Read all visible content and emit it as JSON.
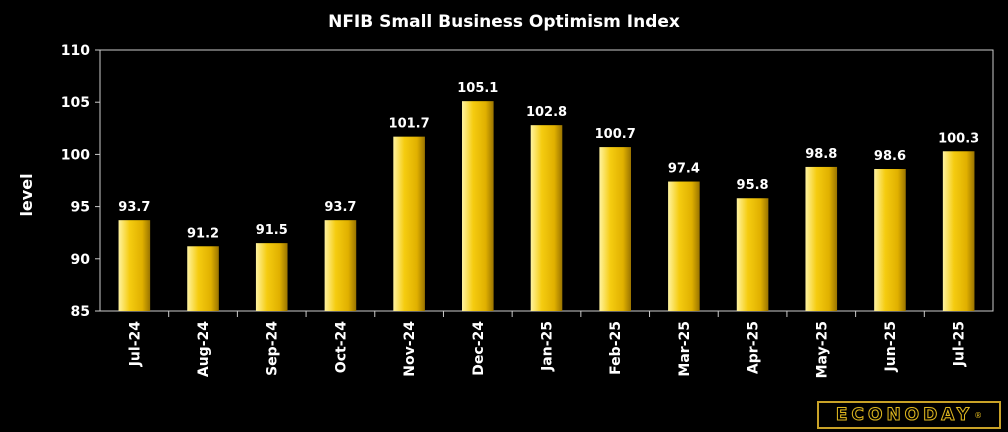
{
  "chart_data": {
    "type": "bar",
    "title": "NFIB Small Business Optimism Index",
    "xlabel": "",
    "ylabel": "level",
    "ylim": [
      85,
      110
    ],
    "yticks": [
      85,
      90,
      95,
      100,
      105,
      110
    ],
    "categories": [
      "Jul-24",
      "Aug-24",
      "Sep-24",
      "Oct-24",
      "Nov-24",
      "Dec-24",
      "Jan-25",
      "Feb-25",
      "Mar-25",
      "Apr-25",
      "May-25",
      "Jun-25",
      "Jul-25"
    ],
    "values": [
      93.7,
      91.2,
      91.5,
      93.7,
      101.7,
      105.1,
      102.8,
      100.7,
      97.4,
      95.8,
      98.8,
      98.6,
      100.3
    ],
    "data_labels": [
      "93.7",
      "91.2",
      "91.5",
      "93.7",
      "101.7",
      "105.1",
      "102.8",
      "100.7",
      "97.4",
      "95.8",
      "98.8",
      "98.6",
      "100.3"
    ],
    "bar_color": "#f2c200",
    "grid": false
  },
  "brand": {
    "name": "ECONODAY",
    "mark": "®",
    "color": "#e0b820"
  }
}
